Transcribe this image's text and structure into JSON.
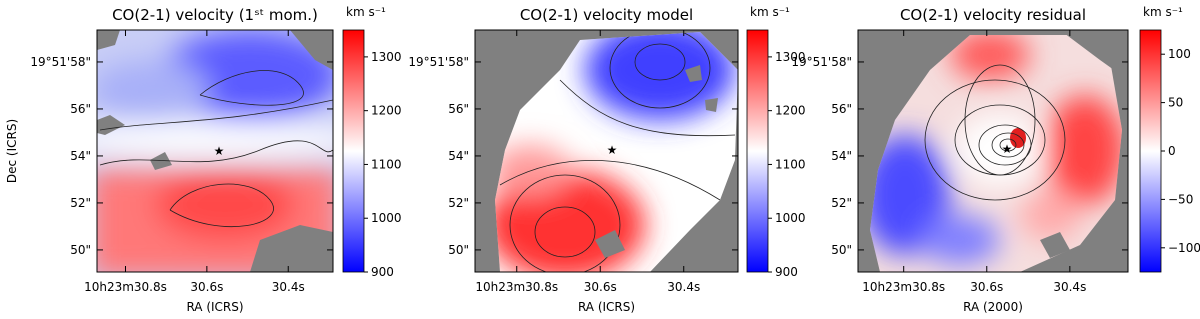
{
  "chart_data": [
    {
      "type": "map",
      "title": "CO(2-1) velocity (1ˢᵗ mom.)",
      "xlabel": "RA (ICRS)",
      "ylabel": "Dec (ICRS)",
      "xlim": [
        30.87,
        30.29
      ],
      "xticks": [
        {
          "value": 30.8,
          "label": "10h23m30.8s"
        },
        {
          "value": 30.6,
          "label": "30.6s"
        },
        {
          "value": 30.4,
          "label": "30.4s"
        }
      ],
      "ylim": [
        49.06,
        59.36
      ],
      "yticks": [
        {
          "value": 58,
          "label": "19°51'58\""
        },
        {
          "value": 56,
          "label": "56\""
        },
        {
          "value": 54,
          "label": "54\""
        },
        {
          "value": 52,
          "label": "52\""
        },
        {
          "value": 50,
          "label": "50\""
        }
      ],
      "colorbar": {
        "label": "km s⁻¹",
        "lim": [
          900,
          1350
        ],
        "ticks": [
          900,
          1000,
          1100,
          1200,
          1300
        ],
        "cmap": [
          "#0000ff",
          "#ffffff",
          "#ff0000"
        ]
      }
    },
    {
      "type": "map",
      "title": "CO(2-1) velocity model",
      "xlabel": "RA (ICRS)",
      "xlim": [
        30.9,
        30.27
      ],
      "xticks": [
        {
          "value": 30.8,
          "label": "10h23m30.8s"
        },
        {
          "value": 30.6,
          "label": "30.6s"
        },
        {
          "value": 30.4,
          "label": "30.4s"
        }
      ],
      "ylim": [
        49.06,
        59.36
      ],
      "yticks": [
        {
          "value": 58,
          "label": "19°51'58\""
        },
        {
          "value": 56,
          "label": "56\""
        },
        {
          "value": 54,
          "label": "54\""
        },
        {
          "value": 52,
          "label": "52\""
        },
        {
          "value": 50,
          "label": "50\""
        }
      ],
      "colorbar": {
        "label": "km s⁻¹",
        "lim": [
          900,
          1350
        ],
        "ticks": [
          900,
          1000,
          1100,
          1200,
          1300
        ],
        "cmap": [
          "#0000ff",
          "#ffffff",
          "#ff0000"
        ]
      }
    },
    {
      "type": "map",
      "title": "CO(2-1) velocity residual",
      "xlabel": "RA (2000)",
      "xlim": [
        30.91,
        30.26
      ],
      "xticks": [
        {
          "value": 30.8,
          "label": "10h23m30.8s"
        },
        {
          "value": 30.6,
          "label": "30.6s"
        },
        {
          "value": 30.4,
          "label": "30.4s"
        }
      ],
      "ylim": [
        49.06,
        59.36
      ],
      "yticks": [
        {
          "value": 58,
          "label": "19°51'58\""
        },
        {
          "value": 56,
          "label": "56\""
        },
        {
          "value": 54,
          "label": "54\""
        },
        {
          "value": 52,
          "label": "52\""
        },
        {
          "value": 50,
          "label": "50\""
        }
      ],
      "colorbar": {
        "label": "km s⁻¹",
        "lim": [
          -125,
          125
        ],
        "ticks": [
          {
            "value": -100,
            "label": "−100"
          },
          {
            "value": -50,
            "label": "−50"
          },
          0,
          50,
          100
        ],
        "cmap": [
          "#0000ff",
          "#ffffff",
          "#ff0000"
        ]
      }
    }
  ]
}
